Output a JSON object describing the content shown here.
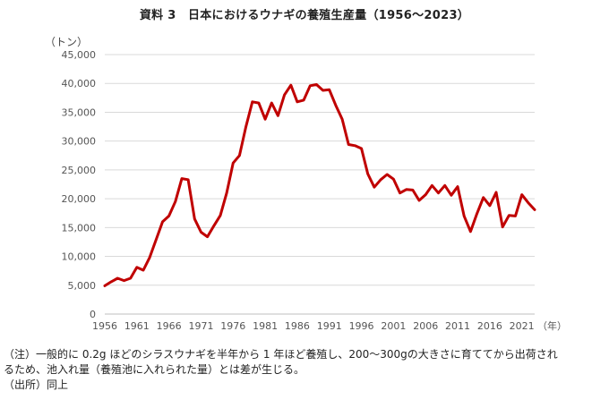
{
  "title": "資料 3　日本におけるウナギの養殖生産量（1956～2023）",
  "chart_data": {
    "type": "line",
    "title": "資料 3　日本におけるウナギの養殖生産量（1956～2023）",
    "ylabel": "（トン）",
    "xlabel": "（年）",
    "ylim": [
      0,
      45000
    ],
    "xlim": [
      1956,
      2023
    ],
    "yticks": [
      0,
      5000,
      10000,
      15000,
      20000,
      25000,
      30000,
      35000,
      40000,
      45000
    ],
    "ytick_labels": [
      "0",
      "5,000",
      "10,000",
      "15,000",
      "20,000",
      "25,000",
      "30,000",
      "35,000",
      "40,000",
      "45,000"
    ],
    "xticks": [
      1956,
      1961,
      1966,
      1971,
      1976,
      1981,
      1986,
      1991,
      1996,
      2001,
      2006,
      2011,
      2016,
      2021
    ],
    "xtick_labels": [
      "1956",
      "1961",
      "1966",
      "1971",
      "1976",
      "1981",
      "1986",
      "1991",
      "1996",
      "2001",
      "2006",
      "2011",
      "2016",
      "2021"
    ],
    "grid": true,
    "legend": "none",
    "series": [
      {
        "color": "#c00000",
        "x": [
          1956,
          1957,
          1958,
          1959,
          1960,
          1961,
          1962,
          1963,
          1964,
          1965,
          1966,
          1967,
          1968,
          1969,
          1970,
          1971,
          1972,
          1973,
          1974,
          1975,
          1976,
          1977,
          1978,
          1979,
          1980,
          1981,
          1982,
          1983,
          1984,
          1985,
          1986,
          1987,
          1988,
          1989,
          1990,
          1991,
          1992,
          1993,
          1994,
          1995,
          1996,
          1997,
          1998,
          1999,
          2000,
          2001,
          2002,
          2003,
          2004,
          2005,
          2006,
          2007,
          2008,
          2009,
          2010,
          2011,
          2012,
          2013,
          2014,
          2015,
          2016,
          2017,
          2018,
          2019,
          2020,
          2021,
          2022,
          2023
        ],
        "y": [
          4900,
          5600,
          6200,
          5800,
          6200,
          8100,
          7600,
          9800,
          12900,
          16000,
          17000,
          19500,
          23500,
          23300,
          16500,
          14200,
          13400,
          15300,
          17100,
          21000,
          26200,
          27500,
          32500,
          36800,
          36600,
          33800,
          36600,
          34400,
          38000,
          39700,
          36800,
          37100,
          39600,
          39800,
          38800,
          38900,
          36200,
          33800,
          29400,
          29200,
          28700,
          24300,
          22000,
          23300,
          24200,
          23400,
          21000,
          21600,
          21500,
          19700,
          20700,
          22300,
          21000,
          22300,
          20600,
          22100,
          17000,
          14300,
          17400,
          20200,
          18800,
          21100,
          15100,
          17100,
          17000,
          20700,
          19300,
          18100
        ]
      }
    ]
  },
  "notes": [
    "（注）一般的に 0.2g ほどのシラスウナギを半年から 1 年ほど養殖し、200～300gの大きさに育ててから出荷され",
    "るため、池入れ量（養殖池に入れられた量）とは差が生じる。",
    "（出所）同上"
  ]
}
